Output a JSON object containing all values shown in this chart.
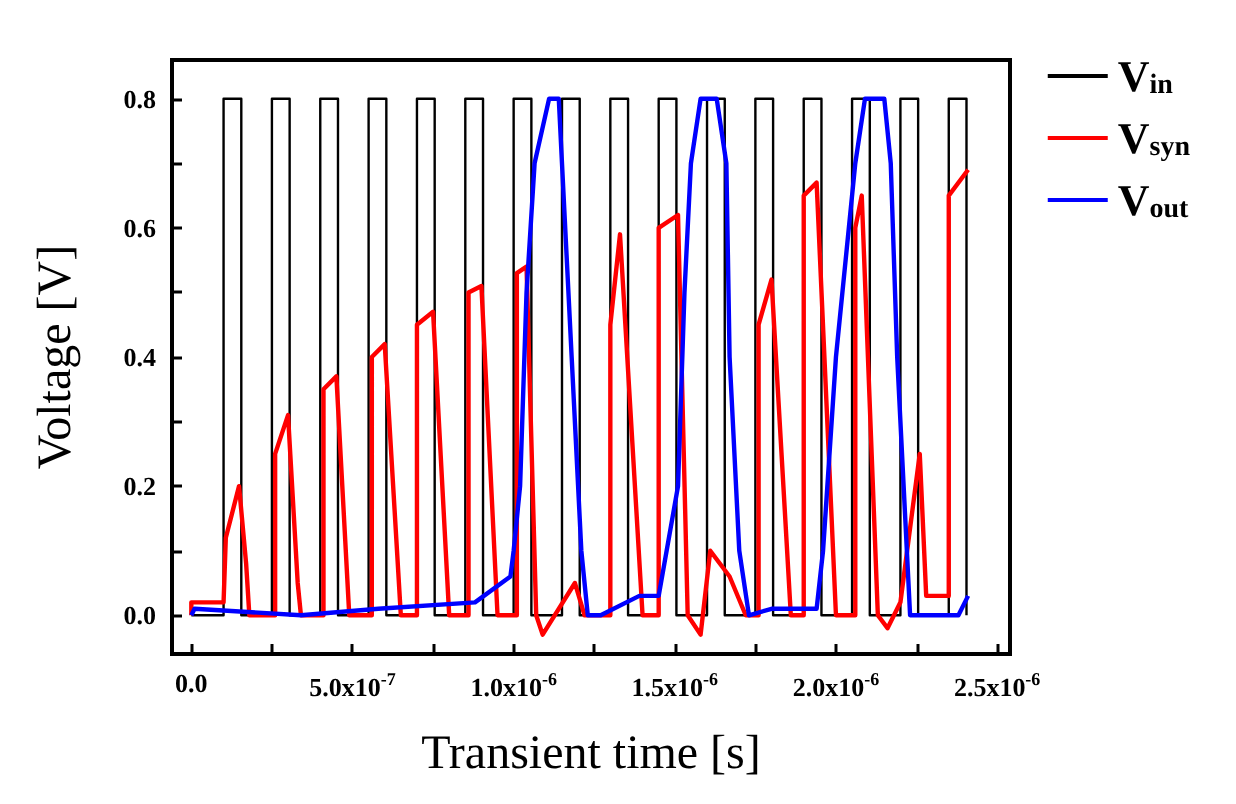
{
  "chart_data": {
    "type": "line",
    "xlabel": "Transient time [s]",
    "ylabel": "Voltage [V]",
    "xlim": [
      -6e-08,
      2.54e-06
    ],
    "ylim": [
      -0.06,
      0.86
    ],
    "xticks": [
      {
        "value": 0,
        "label": "0.0"
      },
      {
        "value": 2.5e-07,
        "label": null
      },
      {
        "value": 5e-07,
        "label": "5.0x10$^{-7}$"
      },
      {
        "value": 7.5e-07,
        "label": null
      },
      {
        "value": 1e-06,
        "label": "1.0x10$^{-6}$"
      },
      {
        "value": 1.25e-06,
        "label": null
      },
      {
        "value": 1.5e-06,
        "label": "1.5x10$^{-6}$"
      },
      {
        "value": 1.75e-06,
        "label": null
      },
      {
        "value": 2e-06,
        "label": "2.0x10$^{-6}$"
      },
      {
        "value": 2.25e-06,
        "label": null
      },
      {
        "value": 2.5e-06,
        "label": "2.5x10$^{-6}$"
      }
    ],
    "yticks": [
      {
        "value": 0,
        "label": "0.0"
      },
      {
        "value": 0.1,
        "label": null
      },
      {
        "value": 0.2,
        "label": "0.2"
      },
      {
        "value": 0.3,
        "label": null
      },
      {
        "value": 0.4,
        "label": "0.4"
      },
      {
        "value": 0.5,
        "label": null
      },
      {
        "value": 0.6,
        "label": "0.6"
      },
      {
        "value": 0.7,
        "label": null
      },
      {
        "value": 0.8,
        "label": "0.8"
      }
    ],
    "grid": false,
    "legend": "top right",
    "marker": "none",
    "line_style": "solid",
    "series": [
      {
        "name": "V$_{in}$",
        "color": "#000000",
        "x": [
          0,
          1e-07,
          1e-07,
          1.55e-07,
          1.55e-07,
          2.5e-07,
          2.5e-07,
          3.05e-07,
          3.05e-07,
          4e-07,
          4e-07,
          4.55e-07,
          4.55e-07,
          5.5e-07,
          5.5e-07,
          6.05e-07,
          6.05e-07,
          7e-07,
          7e-07,
          7.55e-07,
          7.55e-07,
          8.5e-07,
          8.5e-07,
          9.05e-07,
          9.05e-07,
          1e-06,
          1e-06,
          1.055e-06,
          1.055e-06,
          1.15e-06,
          1.15e-06,
          1.205e-06,
          1.205e-06,
          1.3e-06,
          1.3e-06,
          1.355e-06,
          1.355e-06,
          1.45e-06,
          1.45e-06,
          1.505e-06,
          1.505e-06,
          1.6e-06,
          1.6e-06,
          1.655e-06,
          1.655e-06,
          1.75e-06,
          1.75e-06,
          1.805e-06,
          1.805e-06,
          1.9e-06,
          1.9e-06,
          1.955e-06,
          1.955e-06,
          2.05e-06,
          2.05e-06,
          2.105e-06,
          2.105e-06,
          2.2e-06,
          2.2e-06,
          2.255e-06,
          2.255e-06,
          2.35e-06,
          2.35e-06,
          2.405e-06,
          2.405e-06
        ],
        "values": [
          0,
          0,
          0.8,
          0.8,
          0,
          0,
          0.8,
          0.8,
          0,
          0,
          0.8,
          0.8,
          0,
          0,
          0.8,
          0.8,
          0,
          0,
          0.8,
          0.8,
          0,
          0,
          0.8,
          0.8,
          0,
          0,
          0.8,
          0.8,
          0,
          0,
          0.8,
          0.8,
          0,
          0,
          0.8,
          0.8,
          0,
          0,
          0.8,
          0.8,
          0,
          0,
          0.8,
          0.8,
          0,
          0,
          0.8,
          0.8,
          0,
          0,
          0.8,
          0.8,
          0,
          0,
          0.8,
          0.8,
          0,
          0,
          0.8,
          0.8,
          0,
          0,
          0.8,
          0.8,
          0
        ]
      },
      {
        "name": "V$_{syn}$",
        "color": "#ff0000",
        "x": [
          0,
          0,
          1e-07,
          1.07e-07,
          1.48e-07,
          1.7e-07,
          1.8e-07,
          2.6e-07,
          2.6e-07,
          3e-07,
          3.3e-07,
          3.4e-07,
          4.1e-07,
          4.1e-07,
          4.5e-07,
          4.9e-07,
          5.6e-07,
          5.6e-07,
          6e-07,
          6.5e-07,
          7e-07,
          7e-07,
          7.5e-07,
          8e-07,
          8.6e-07,
          8.6e-07,
          9e-07,
          9.5e-07,
          1.01e-06,
          1.01e-06,
          1.04e-06,
          1.07e-06,
          1.09e-06,
          1.19e-06,
          1.22e-06,
          1.3e-06,
          1.3e-06,
          1.33e-06,
          1.4e-06,
          1.45e-06,
          1.45e-06,
          1.51e-06,
          1.54e-06,
          1.58e-06,
          1.61e-06,
          1.67e-06,
          1.72e-06,
          1.76e-06,
          1.76e-06,
          1.8e-06,
          1.86e-06,
          1.9e-06,
          1.9e-06,
          1.94e-06,
          2e-06,
          2.06e-06,
          2.06e-06,
          2.08e-06,
          2.13e-06,
          2.16e-06,
          2.2e-06,
          2.26e-06,
          2.28e-06,
          2.35e-06,
          2.35e-06,
          2.41e-06
        ],
        "values": [
          0,
          0.02,
          0.02,
          0.12,
          0.2,
          0.08,
          0,
          0,
          0.25,
          0.31,
          0.05,
          0,
          0,
          0.35,
          0.37,
          0,
          0,
          0.4,
          0.42,
          0,
          0,
          0.45,
          0.47,
          0,
          0,
          0.5,
          0.51,
          0,
          0,
          0.53,
          0.54,
          0,
          -0.03,
          0.05,
          0,
          0,
          0.45,
          0.59,
          0,
          0,
          0.6,
          0.62,
          0,
          -0.03,
          0.1,
          0.06,
          0,
          0,
          0.45,
          0.52,
          0,
          0,
          0.65,
          0.67,
          0,
          0,
          0.6,
          0.65,
          0,
          -0.02,
          0.02,
          0.25,
          0.03,
          0.03,
          0.65,
          0.69
        ]
      },
      {
        "name": "V$_{out}$",
        "color": "#0000ff",
        "x": [
          0,
          1e-08,
          3.4e-07,
          5.8e-07,
          8.8e-07,
          9.9e-07,
          1e-06,
          1.02e-06,
          1.04e-06,
          1.065e-06,
          1.11e-06,
          1.14e-06,
          1.15e-06,
          1.18e-06,
          1.21e-06,
          1.23e-06,
          1.27e-06,
          1.39e-06,
          1.45e-06,
          1.51e-06,
          1.53e-06,
          1.55e-06,
          1.58e-06,
          1.63e-06,
          1.66e-06,
          1.67e-06,
          1.7e-06,
          1.73e-06,
          1.8e-06,
          1.94e-06,
          1.96e-06,
          2e-06,
          2.06e-06,
          2.09e-06,
          2.15e-06,
          2.17e-06,
          2.19e-06,
          2.22e-06,
          2.23e-06,
          2.38e-06,
          2.41e-06
        ],
        "values": [
          0,
          0.01,
          0,
          0.01,
          0.02,
          0.06,
          0.1,
          0.2,
          0.5,
          0.7,
          0.8,
          0.8,
          0.7,
          0.4,
          0.1,
          0,
          0,
          0.03,
          0.03,
          0.2,
          0.5,
          0.7,
          0.8,
          0.8,
          0.7,
          0.4,
          0.1,
          0,
          0.01,
          0.01,
          0.1,
          0.4,
          0.7,
          0.8,
          0.8,
          0.7,
          0.4,
          0.1,
          0,
          0,
          0.03
        ]
      }
    ]
  }
}
